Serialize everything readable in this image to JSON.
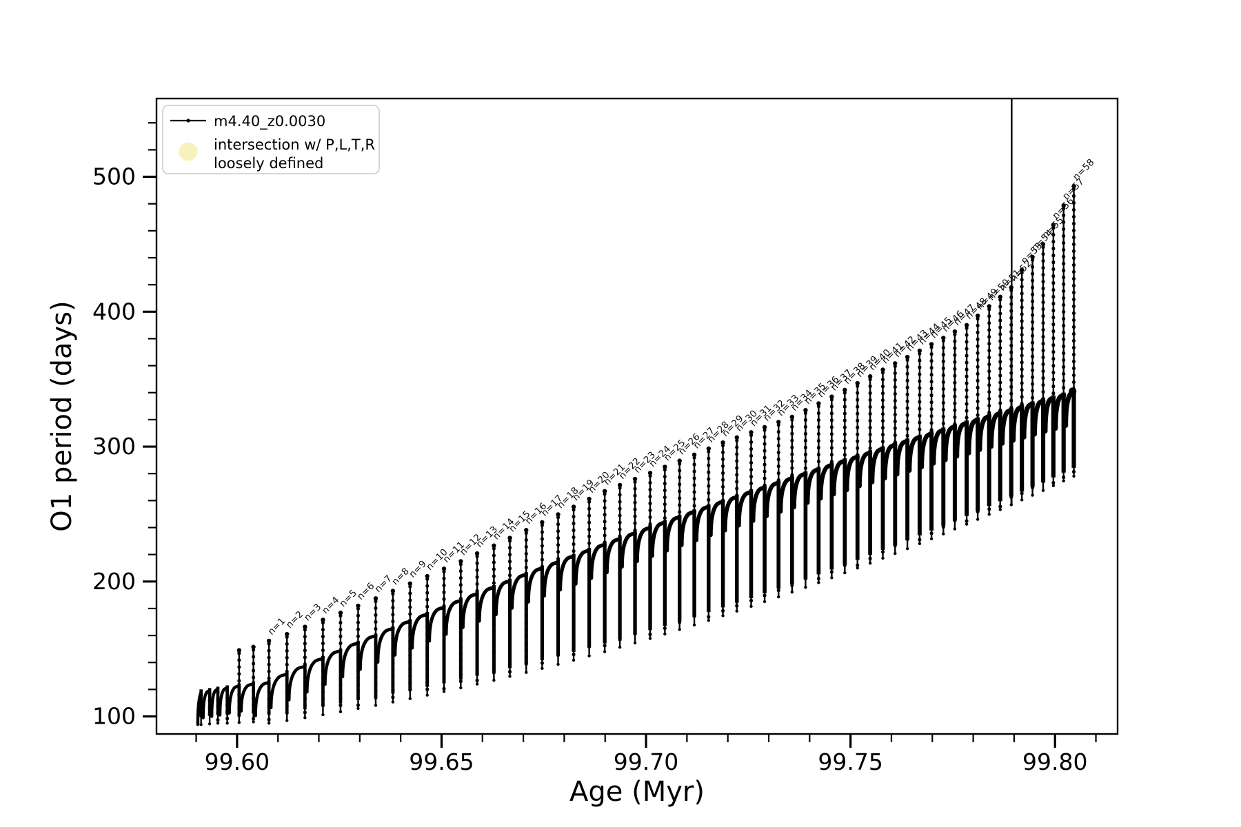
{
  "figure": {
    "background": "#ffffff",
    "frame_color": "#000000"
  },
  "axes": {
    "xlabel": "Age (Myr)",
    "ylabel": "O1 period (days)",
    "xlim": [
      99.5803,
      99.8153
    ],
    "ylim": [
      87,
      558
    ],
    "x_major_ticks": [
      {
        "value": 99.6,
        "label": "99.60"
      },
      {
        "value": 99.65,
        "label": "99.65"
      },
      {
        "value": 99.7,
        "label": "99.70"
      },
      {
        "value": 99.75,
        "label": "99.75"
      },
      {
        "value": 99.8,
        "label": "99.80"
      }
    ],
    "x_minor_step": 0.01,
    "y_major_ticks": [
      {
        "value": 100,
        "label": "100"
      },
      {
        "value": 200,
        "label": "200"
      },
      {
        "value": 300,
        "label": "300"
      },
      {
        "value": 400,
        "label": "400"
      },
      {
        "value": 500,
        "label": "500"
      }
    ],
    "y_minor_step": 20
  },
  "legend": {
    "series_label": "m4.40_z0.0030",
    "intersection_label_line1": "intersection w/ P,L,T,R",
    "intersection_label_line2": "loosely defined",
    "intersection_marker_color": "#f7f2bb",
    "line_color": "#000000"
  },
  "chart_data": {
    "type": "line",
    "title": "",
    "xlabel": "Age (Myr)",
    "ylabel": "O1 period (days)",
    "series_name": "m4.40_z0.0030",
    "legend_position": "upper left",
    "grid": false,
    "xlim": [
      99.5803,
      99.8153
    ],
    "ylim": [
      87,
      558
    ],
    "spike_label_prefix": "n=",
    "track_start": {
      "age": 99.5904,
      "period": 94
    },
    "final_point": {
      "age": 99.8043,
      "period": 341
    },
    "tall_vline": {
      "age": 99.7894,
      "top_period": 558,
      "bottom_period": 257
    },
    "cycles": [
      {
        "n": null,
        "age": 99.5912,
        "arc_top": 118,
        "dip_bottom": 94,
        "spike_top": null
      },
      {
        "n": null,
        "age": 99.5933,
        "arc_top": 119,
        "dip_bottom": 94.5,
        "spike_top": null
      },
      {
        "n": null,
        "age": 99.5953,
        "arc_top": 120,
        "dip_bottom": 95,
        "spike_top": null
      },
      {
        "n": null,
        "age": 99.5976,
        "arc_top": 121,
        "dip_bottom": 95,
        "spike_top": null
      },
      {
        "n": null,
        "age": 99.6005,
        "arc_top": 122.5,
        "dip_bottom": 95.5,
        "spike_top": 149
      },
      {
        "n": null,
        "age": 99.604,
        "arc_top": 124,
        "dip_bottom": 96,
        "spike_top": 151.5
      },
      {
        "n": 1,
        "age": 99.6078,
        "arc_top": 125,
        "dip_bottom": 95,
        "spike_top": 156
      },
      {
        "n": 2,
        "age": 99.6122,
        "arc_top": 131,
        "dip_bottom": 97,
        "spike_top": 161
      },
      {
        "n": 3,
        "age": 99.6166,
        "arc_top": 136.8,
        "dip_bottom": 99.1,
        "spike_top": 166.4
      },
      {
        "n": 4,
        "age": 99.621,
        "arc_top": 142.6,
        "dip_bottom": 101.3,
        "spike_top": 171.6
      },
      {
        "n": 5,
        "age": 99.6253,
        "arc_top": 148.3,
        "dip_bottom": 103.5,
        "spike_top": 176.8
      },
      {
        "n": 6,
        "age": 99.6296,
        "arc_top": 154,
        "dip_bottom": 105.9,
        "spike_top": 182
      },
      {
        "n": 7,
        "age": 99.6339,
        "arc_top": 159.4,
        "dip_bottom": 108.2,
        "spike_top": 187.5
      },
      {
        "n": 8,
        "age": 99.6381,
        "arc_top": 164.8,
        "dip_bottom": 110.7,
        "spike_top": 193
      },
      {
        "n": 9,
        "age": 99.6423,
        "arc_top": 170.1,
        "dip_bottom": 113.2,
        "spike_top": 198.5
      },
      {
        "n": 10,
        "age": 99.6465,
        "arc_top": 175.3,
        "dip_bottom": 115.8,
        "spike_top": 204
      },
      {
        "n": 11,
        "age": 99.6506,
        "arc_top": 180.5,
        "dip_bottom": 118.5,
        "spike_top": 209.5
      },
      {
        "n": 12,
        "age": 99.6547,
        "arc_top": 185.5,
        "dip_bottom": 121.2,
        "spike_top": 215
      },
      {
        "n": 13,
        "age": 99.6587,
        "arc_top": 190.5,
        "dip_bottom": 124,
        "spike_top": 220.8
      },
      {
        "n": 14,
        "age": 99.6628,
        "arc_top": 195.3,
        "dip_bottom": 126.8,
        "spike_top": 226.6
      },
      {
        "n": 15,
        "age": 99.6667,
        "arc_top": 200.1,
        "dip_bottom": 129.7,
        "spike_top": 232.3
      },
      {
        "n": 16,
        "age": 99.6707,
        "arc_top": 204.9,
        "dip_bottom": 132.6,
        "spike_top": 238.1
      },
      {
        "n": 17,
        "age": 99.6746,
        "arc_top": 209.5,
        "dip_bottom": 135.6,
        "spike_top": 243.9
      },
      {
        "n": 18,
        "age": 99.6785,
        "arc_top": 214,
        "dip_bottom": 138.6,
        "spike_top": 249.7
      },
      {
        "n": 19,
        "age": 99.6823,
        "arc_top": 218.5,
        "dip_bottom": 141.7,
        "spike_top": 255.4
      },
      {
        "n": 20,
        "age": 99.6861,
        "arc_top": 222.8,
        "dip_bottom": 144.9,
        "spike_top": 261.2
      },
      {
        "n": 21,
        "age": 99.6899,
        "arc_top": 227.1,
        "dip_bottom": 148,
        "spike_top": 267
      },
      {
        "n": 22,
        "age": 99.6936,
        "arc_top": 231.3,
        "dip_bottom": 151.3,
        "spike_top": 271.5
      },
      {
        "n": 23,
        "age": 99.6973,
        "arc_top": 235.5,
        "dip_bottom": 154.5,
        "spike_top": 276
      },
      {
        "n": 24,
        "age": 99.701,
        "arc_top": 239.6,
        "dip_bottom": 157.8,
        "spike_top": 280.5
      },
      {
        "n": 25,
        "age": 99.7046,
        "arc_top": 243.5,
        "dip_bottom": 161.1,
        "spike_top": 285
      },
      {
        "n": 26,
        "age": 99.7082,
        "arc_top": 247.5,
        "dip_bottom": 164.4,
        "spike_top": 289.5
      },
      {
        "n": 27,
        "age": 99.7118,
        "arc_top": 251.4,
        "dip_bottom": 167.8,
        "spike_top": 294
      },
      {
        "n": 28,
        "age": 99.7153,
        "arc_top": 255.2,
        "dip_bottom": 171.2,
        "spike_top": 298.5
      },
      {
        "n": 29,
        "age": 99.7188,
        "arc_top": 258.9,
        "dip_bottom": 174.7,
        "spike_top": 303
      },
      {
        "n": 30,
        "age": 99.7222,
        "arc_top": 262.4,
        "dip_bottom": 178.1,
        "spike_top": 306.8
      },
      {
        "n": 31,
        "age": 99.7257,
        "arc_top": 266.1,
        "dip_bottom": 181.6,
        "spike_top": 310.6
      },
      {
        "n": 32,
        "age": 99.729,
        "arc_top": 269.5,
        "dip_bottom": 185.1,
        "spike_top": 314.4
      },
      {
        "n": 33,
        "age": 99.7324,
        "arc_top": 273,
        "dip_bottom": 188.6,
        "spike_top": 318.2
      },
      {
        "n": 34,
        "age": 99.7357,
        "arc_top": 276.3,
        "dip_bottom": 192.2,
        "spike_top": 322
      },
      {
        "n": 35,
        "age": 99.739,
        "arc_top": 279.6,
        "dip_bottom": 195.7,
        "spike_top": 327
      },
      {
        "n": 36,
        "age": 99.7422,
        "arc_top": 282.9,
        "dip_bottom": 199.2,
        "spike_top": 332
      },
      {
        "n": 37,
        "age": 99.7454,
        "arc_top": 286.1,
        "dip_bottom": 202.8,
        "spike_top": 337
      },
      {
        "n": 38,
        "age": 99.7486,
        "arc_top": 289.2,
        "dip_bottom": 206.5,
        "spike_top": 342
      },
      {
        "n": 39,
        "age": 99.7517,
        "arc_top": 292.3,
        "dip_bottom": 210,
        "spike_top": 347
      },
      {
        "n": 40,
        "age": 99.7548,
        "arc_top": 295.3,
        "dip_bottom": 213.6,
        "spike_top": 352
      },
      {
        "n": 41,
        "age": 99.7579,
        "arc_top": 298.2,
        "dip_bottom": 217.3,
        "spike_top": 357
      },
      {
        "n": 42,
        "age": 99.7609,
        "arc_top": 301.1,
        "dip_bottom": 220.8,
        "spike_top": 361.7
      },
      {
        "n": 43,
        "age": 99.7639,
        "arc_top": 304,
        "dip_bottom": 224.4,
        "spike_top": 366.4
      },
      {
        "n": 44,
        "age": 99.7669,
        "arc_top": 306.8,
        "dip_bottom": 228.1,
        "spike_top": 371.1
      },
      {
        "n": 45,
        "age": 99.7698,
        "arc_top": 309.4,
        "dip_bottom": 231.7,
        "spike_top": 375.9
      },
      {
        "n": 46,
        "age": 99.7727,
        "arc_top": 312.1,
        "dip_bottom": 235.3,
        "spike_top": 380.6
      },
      {
        "n": 47,
        "age": 99.7755,
        "arc_top": 314.7,
        "dip_bottom": 239,
        "spike_top": 385.3
      },
      {
        "n": 48,
        "age": 99.7784,
        "arc_top": 317.3,
        "dip_bottom": 242.5,
        "spike_top": 390
      },
      {
        "n": 49,
        "age": 99.7811,
        "arc_top": 319.7,
        "dip_bottom": 246.1,
        "spike_top": 397
      },
      {
        "n": 50,
        "age": 99.7839,
        "arc_top": 322.2,
        "dip_bottom": 249.8,
        "spike_top": 404
      },
      {
        "n": 51,
        "age": 99.7866,
        "arc_top": 324.6,
        "dip_bottom": 253.4,
        "spike_top": 411
      },
      {
        "n": 52,
        "age": 99.7893,
        "arc_top": 326.9,
        "dip_bottom": 256.9,
        "spike_top": 418
      },
      {
        "n": 53,
        "age": 99.7919,
        "arc_top": 329.2,
        "dip_bottom": 260.5,
        "spike_top": 431
      },
      {
        "n": 54,
        "age": 99.7945,
        "arc_top": 331.5,
        "dip_bottom": 264,
        "spike_top": 440.5
      },
      {
        "n": 55,
        "age": 99.7971,
        "arc_top": 333.7,
        "dip_bottom": 267.5,
        "spike_top": 450
      },
      {
        "n": 56,
        "age": 99.7996,
        "arc_top": 335.9,
        "dip_bottom": 271.1,
        "spike_top": 464.3
      },
      {
        "n": 57,
        "age": 99.8021,
        "arc_top": 338,
        "dip_bottom": 274.6,
        "spike_top": 478.7
      },
      {
        "n": 58,
        "age": 99.8046,
        "arc_top": 340.1,
        "dip_bottom": 278.1,
        "spike_top": 493
      }
    ]
  }
}
